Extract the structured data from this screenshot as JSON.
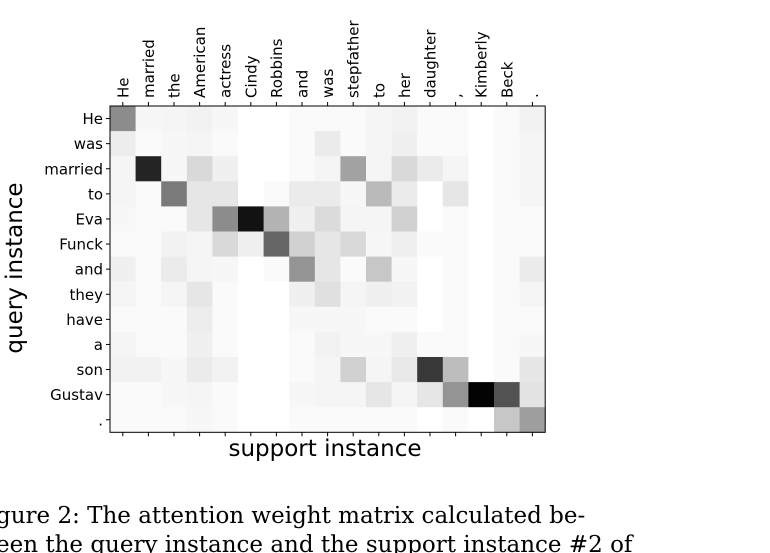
{
  "chart_data": {
    "type": "heatmap",
    "title": "",
    "xlabel": "support instance",
    "ylabel": "query instance",
    "x_categories": [
      "He",
      "married",
      "the",
      "American",
      "actress",
      "Cindy",
      "Robbins",
      "and",
      "was",
      "stepfather",
      "to",
      "her",
      "daughter",
      ",",
      "Kimberly",
      "Beck",
      "."
    ],
    "y_categories": [
      "He",
      "was",
      "married",
      "to",
      "Eva",
      "Funck",
      "and",
      "they",
      "have",
      "a",
      "son",
      "Gustav",
      "."
    ],
    "colormap": "white-to-black (higher weight = darker)",
    "values": [
      [
        0.45,
        0.03,
        0.04,
        0.05,
        0.03,
        0.0,
        0.0,
        0.02,
        0.02,
        0.02,
        0.04,
        0.05,
        0.02,
        0.02,
        0.0,
        0.02,
        0.05
      ],
      [
        0.07,
        0.02,
        0.03,
        0.04,
        0.02,
        0.0,
        0.0,
        0.02,
        0.08,
        0.02,
        0.04,
        0.06,
        0.02,
        0.02,
        0.0,
        0.02,
        0.04
      ],
      [
        0.04,
        0.86,
        0.03,
        0.15,
        0.06,
        0.0,
        0.0,
        0.02,
        0.04,
        0.36,
        0.04,
        0.15,
        0.08,
        0.04,
        0.0,
        0.02,
        0.04
      ],
      [
        0.04,
        0.02,
        0.52,
        0.1,
        0.1,
        0.0,
        0.02,
        0.08,
        0.08,
        0.03,
        0.27,
        0.08,
        0.0,
        0.1,
        0.0,
        0.02,
        0.04
      ],
      [
        0.03,
        0.02,
        0.02,
        0.1,
        0.45,
        0.93,
        0.3,
        0.06,
        0.14,
        0.04,
        0.04,
        0.18,
        0.0,
        0.02,
        0.0,
        0.02,
        0.02
      ],
      [
        0.02,
        0.02,
        0.05,
        0.04,
        0.15,
        0.06,
        0.6,
        0.18,
        0.1,
        0.15,
        0.03,
        0.06,
        0.02,
        0.02,
        0.0,
        0.02,
        0.02
      ],
      [
        0.06,
        0.02,
        0.08,
        0.04,
        0.03,
        0.0,
        0.02,
        0.42,
        0.1,
        0.02,
        0.22,
        0.03,
        0.0,
        0.02,
        0.0,
        0.02,
        0.08
      ],
      [
        0.04,
        0.02,
        0.04,
        0.1,
        0.02,
        0.0,
        0.0,
        0.06,
        0.12,
        0.04,
        0.06,
        0.05,
        0.0,
        0.02,
        0.0,
        0.02,
        0.04
      ],
      [
        0.02,
        0.02,
        0.02,
        0.07,
        0.02,
        0.0,
        0.0,
        0.03,
        0.03,
        0.03,
        0.02,
        0.02,
        0.0,
        0.02,
        0.0,
        0.02,
        0.02
      ],
      [
        0.04,
        0.02,
        0.02,
        0.06,
        0.02,
        0.0,
        0.0,
        0.02,
        0.05,
        0.03,
        0.03,
        0.06,
        0.02,
        0.02,
        0.0,
        0.02,
        0.03
      ],
      [
        0.05,
        0.05,
        0.03,
        0.08,
        0.05,
        0.0,
        0.0,
        0.02,
        0.04,
        0.18,
        0.04,
        0.09,
        0.78,
        0.26,
        0.0,
        0.02,
        0.1
      ],
      [
        0.02,
        0.02,
        0.03,
        0.04,
        0.02,
        0.0,
        0.0,
        0.03,
        0.04,
        0.04,
        0.1,
        0.04,
        0.1,
        0.42,
        0.99,
        0.68,
        0.11
      ],
      [
        0.02,
        0.02,
        0.02,
        0.03,
        0.02,
        0.0,
        0.0,
        0.02,
        0.02,
        0.02,
        0.02,
        0.02,
        0.0,
        0.02,
        0.0,
        0.22,
        0.38
      ]
    ]
  },
  "caption": {
    "line1": "gure 2:  The attention weight matrix calculated be-",
    "line2": "een the query instance and the support instance #2 of"
  }
}
